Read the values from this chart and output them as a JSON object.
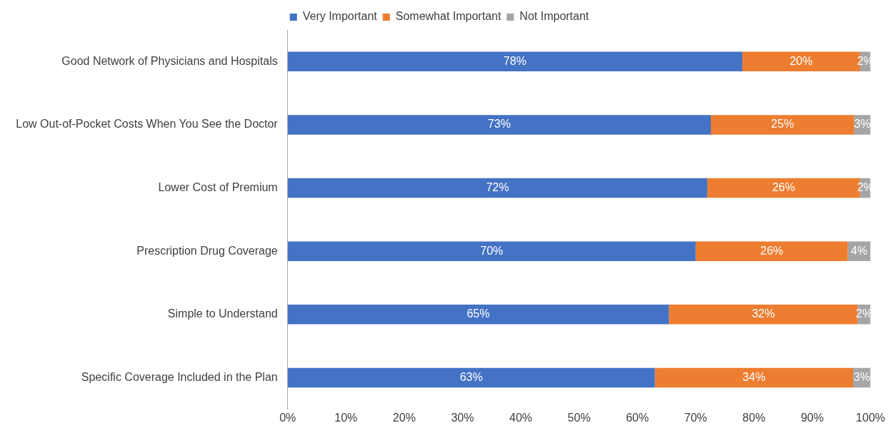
{
  "chart_data": {
    "type": "bar",
    "orientation": "horizontal",
    "stacked": true,
    "categories": [
      "Good Network of Physicians and Hospitals",
      "Low Out-of-Pocket Costs When You See the Doctor",
      "Lower Cost of Premium",
      "Prescription Drug Coverage",
      "Simple to Understand",
      "Specific Coverage Included in the Plan"
    ],
    "series": [
      {
        "name": "Very Important",
        "color": "#4472c4",
        "values": [
          78,
          72.6,
          72,
          70,
          65.4,
          63
        ],
        "value_labels": [
          "78%",
          "73%",
          "72%",
          "70%",
          "65%",
          "63%"
        ]
      },
      {
        "name": "Somewhat Important",
        "color": "#ed7d31",
        "values": [
          20.2,
          24.6,
          26.2,
          26.1,
          32.4,
          34
        ],
        "value_labels": [
          "20%",
          "25%",
          "26%",
          "26%",
          "32%",
          "34%"
        ]
      },
      {
        "name": "Not Important",
        "color": "#a5a5a5",
        "values": [
          1.8,
          2.8,
          1.8,
          3.9,
          2.2,
          3
        ],
        "value_labels": [
          "2%",
          "3%",
          "2%",
          "4%",
          "2%",
          "3%"
        ]
      }
    ],
    "xlim": [
      0,
      100
    ],
    "xticks": [
      {
        "value": 0,
        "label": "0%"
      },
      {
        "value": 10,
        "label": "10%"
      },
      {
        "value": 20,
        "label": "20%"
      },
      {
        "value": 30,
        "label": "30%"
      },
      {
        "value": 40,
        "label": "40%"
      },
      {
        "value": 50,
        "label": "50%"
      },
      {
        "value": 60,
        "label": "60%"
      },
      {
        "value": 70,
        "label": "70%"
      },
      {
        "value": 80,
        "label": "80%"
      },
      {
        "value": 90,
        "label": "90%"
      },
      {
        "value": 100,
        "label": "100%"
      }
    ],
    "grid": false,
    "legend": "top"
  }
}
